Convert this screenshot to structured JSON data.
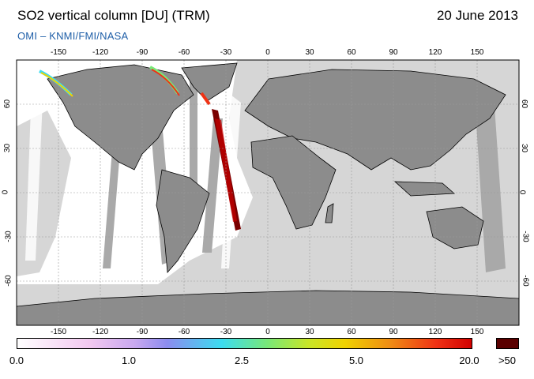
{
  "header": {
    "title": "SO2 vertical column [DU] (TRM)",
    "date": "20 June 2013",
    "subtitle": "OMI  –  KNMI/FMI/NASA"
  },
  "map": {
    "lon_ticks": [
      "-150",
      "-120",
      "-90",
      "-60",
      "-30",
      "0",
      "30",
      "60",
      "90",
      "120",
      "150"
    ],
    "lat_ticks": [
      "60",
      "30",
      "0",
      "-30",
      "-60"
    ],
    "colors": {
      "land": "#8c8c8c",
      "night_shade": "#d6d6d6",
      "orbit_gap": "#a9a9a9",
      "grid": "#9a9a9a"
    }
  },
  "colorbar": {
    "labels": [
      "0.0",
      "1.0",
      "2.5",
      "5.0",
      "20.0",
      ">50"
    ],
    "over_color": "#5a0000"
  }
}
